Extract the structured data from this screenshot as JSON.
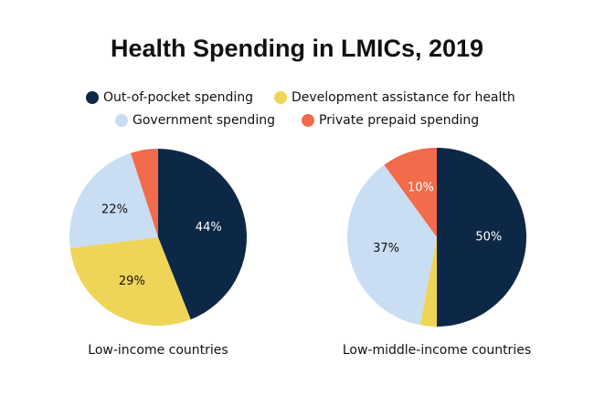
{
  "title": "Health Spending in LMICs, 2019",
  "chart_data": [
    {
      "type": "pie",
      "title": "Low-income countries",
      "categories": [
        "Out-of-pocket spending",
        "Development assistance for health",
        "Government spending",
        "Private prepaid spending"
      ],
      "values": [
        44,
        29,
        22,
        5
      ],
      "value_labels": [
        "44%",
        "29%",
        "22%",
        null
      ],
      "colors": [
        "#0d2847",
        "#efd557",
        "#c9ddf3",
        "#f26b4a"
      ]
    },
    {
      "type": "pie",
      "title": "Low-middle-income countries",
      "categories": [
        "Out-of-pocket spending",
        "Development assistance for health",
        "Government spending",
        "Private prepaid spending"
      ],
      "values": [
        50,
        3,
        37,
        10
      ],
      "value_labels": [
        "50%",
        null,
        "37%",
        "10%"
      ],
      "colors": [
        "#0d2847",
        "#efd557",
        "#c9ddf3",
        "#f26b4a"
      ]
    }
  ]
}
